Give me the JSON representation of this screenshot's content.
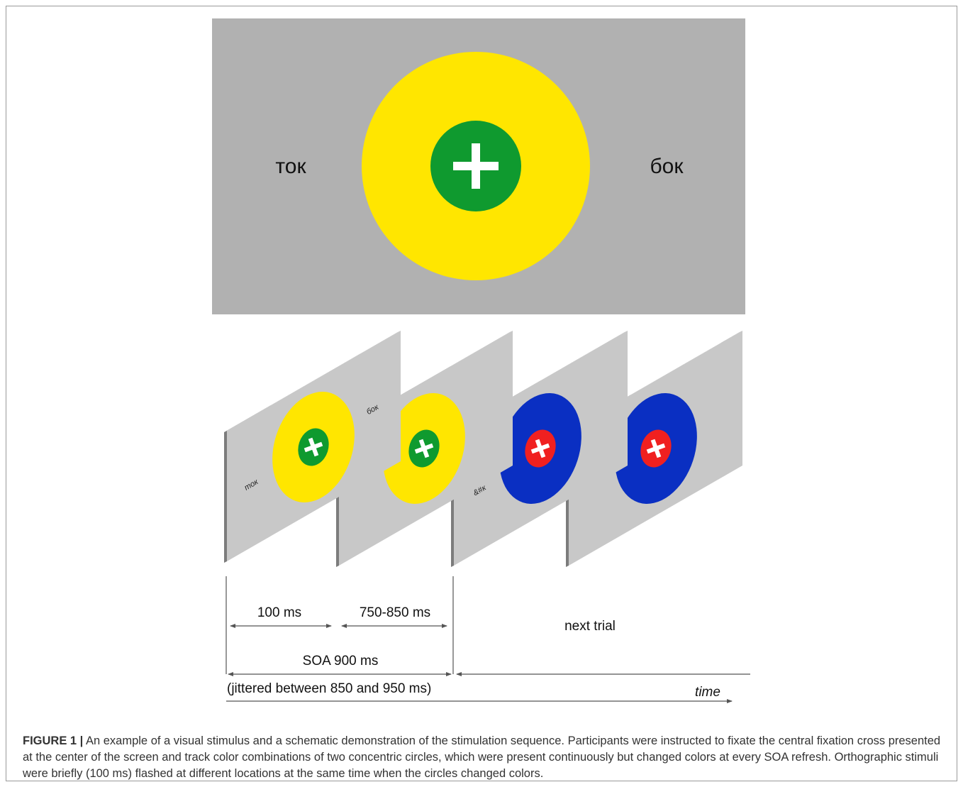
{
  "stimulus": {
    "left_word": "ток",
    "right_word": "бок",
    "colors": {
      "background": "#b1b1b1",
      "outer_circle": "#ffe600",
      "inner_circle": "#0f9a2f",
      "cross": "#ffffff"
    }
  },
  "sequence": {
    "frames": [
      {
        "word_left": "ток",
        "word_right": "бок",
        "outer": "#ffe600",
        "inner": "#0f9a2f"
      },
      {
        "word_left": "",
        "word_right": "",
        "outer": "#ffe600",
        "inner": "#0f9a2f"
      },
      {
        "word_left": "&#к",
        "word_right": "",
        "outer": "#0a2fc2",
        "inner": "#f02020"
      },
      {
        "word_left": "",
        "word_right": "",
        "outer": "#0a2fc2",
        "inner": "#f02020"
      }
    ],
    "frame_color": "#c8c8c8",
    "frame_edge_color": "#8a8a8a"
  },
  "timeline": {
    "label_100": "100 ms",
    "label_750": "750-850 ms",
    "label_next": "next trial",
    "label_soa": "SOA 900 ms",
    "label_jitter": "(jittered between 850 and 950 ms)",
    "label_time": "time"
  },
  "caption": {
    "label": "FIGURE 1 |",
    "text": " An example of a visual stimulus and a schematic demonstration of the stimulation sequence. Participants were instructed to fixate the central fixation cross presented at the center of the screen and track color combinations of two concentric circles, which were present continuously but changed colors at every SOA refresh. Orthographic stimuli were briefly (100 ms) flashed at different locations at the same time when the circles changed colors."
  }
}
